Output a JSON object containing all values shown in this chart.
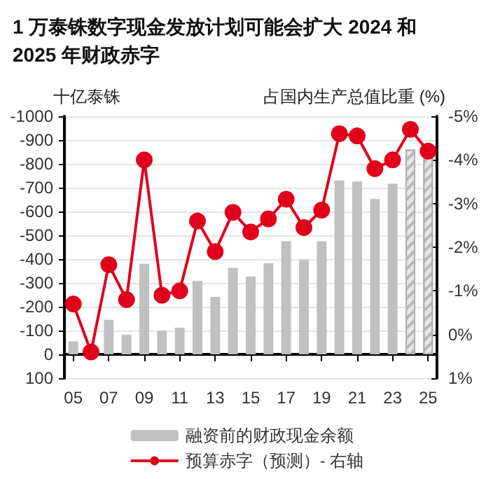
{
  "chart_data": {
    "type": "bar",
    "title": "1 万泰铢数字现金发放计划可能会扩大 2024 和 2025 年财政赤字",
    "ylabel": "十亿泰铢",
    "y2label": "占国内生产总值比重 (%)",
    "categories": [
      "05",
      null,
      "07",
      null,
      "09",
      null,
      "11",
      null,
      "13",
      null,
      "15",
      null,
      "17",
      null,
      "19",
      null,
      "21",
      null,
      "23",
      null,
      "25"
    ],
    "series": [
      {
        "name": "融资前的财政现金余额",
        "color": "#c0c0c0",
        "colors": [
          "#c0c0c0",
          "#c0c0c0",
          "#c0c0c0",
          "#c0c0c0",
          "#c0c0c0",
          "#c0c0c0",
          "#c0c0c0",
          "#c0c0c0",
          "#c0c0c0",
          "#c0c0c0",
          "#c0c0c0",
          "#c0c0c0",
          "#c0c0c0",
          "#c0c0c0",
          "#c0c0c0",
          "#c0c0c0",
          "#c0c0c0",
          "#c0c0c0",
          "#c0c0c0",
          "#e6e6e6",
          "#e6e6e6"
        ],
        "values": [
          -55,
          0,
          -145,
          -82,
          -380,
          -100,
          -112,
          -308,
          -241,
          -363,
          -327,
          -382,
          -475,
          -398,
          -475,
          -730,
          -726,
          -652,
          -717,
          -860,
          -836
        ]
      },
      {
        "name": "预算赤字（预测）- 右轴",
        "type": "line",
        "axis": "y2",
        "color": "#e0001b",
        "marker": "circle",
        "values": [
          -0.7,
          0.4,
          -1.6,
          -0.8,
          -4.0,
          -0.9,
          -1.0,
          -2.6,
          -1.9,
          -2.8,
          -2.35,
          -2.65,
          -3.1,
          -2.45,
          -2.85,
          -4.6,
          -4.55,
          -3.8,
          -4.0,
          -4.7,
          -4.2
        ]
      }
    ],
    "ylim": [
      100,
      -1000
    ],
    "yticks": [
      -1000,
      -900,
      -800,
      -700,
      -600,
      -500,
      -400,
      -300,
      -200,
      -100,
      0,
      100
    ],
    "y2lim": [
      1,
      -5
    ],
    "y2ticks": [
      {
        "value": -5,
        "label": "-5%"
      },
      {
        "value": -4,
        "label": "-4%"
      },
      {
        "value": -3,
        "label": "-3%"
      },
      {
        "value": -2,
        "label": "-2%"
      },
      {
        "value": -1,
        "label": "-1%"
      },
      {
        "value": 0,
        "label": "0%"
      },
      {
        "value": 1,
        "label": "1%"
      }
    ],
    "grid": "y",
    "legend": "bottom"
  }
}
